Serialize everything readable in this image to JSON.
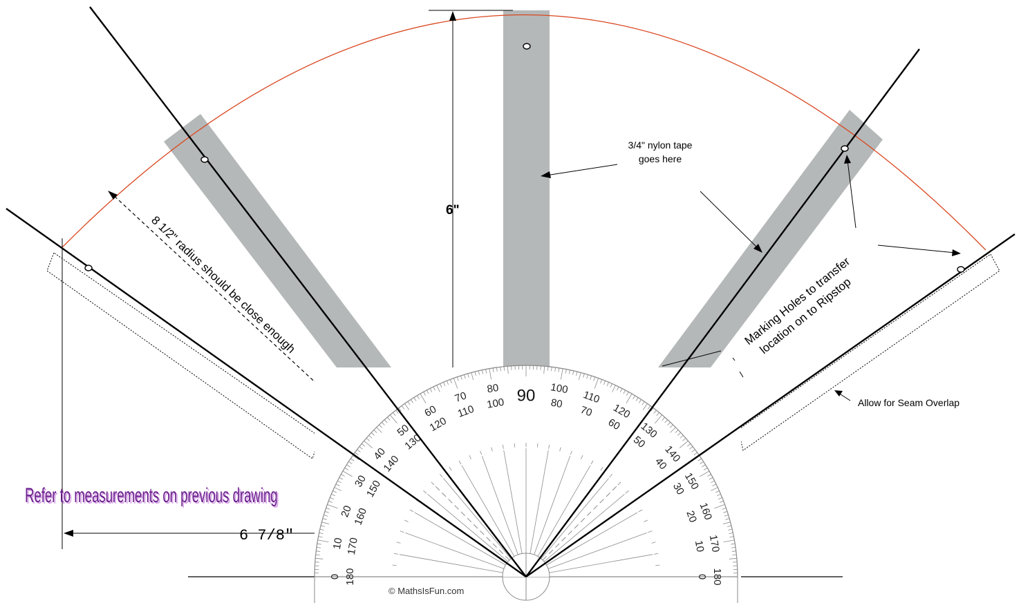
{
  "labels": {
    "tape_note_line1": "3/4\" nylon tape",
    "tape_note_line2": "goes here",
    "height_dim": "6\"",
    "radius_note": "8 1/2\" radius should be close enough",
    "marking_line1": "Marking Holes to transfer",
    "marking_line2": "location on to Ripstop",
    "seam_note": "Allow for Seam Overlap",
    "refer_note": "Refer to measurements on previous drawing",
    "width_dim": "6 7/8\""
  },
  "protractor": {
    "copyright": "© MathsIsFun.com",
    "center_label": "90",
    "outer_labels": [
      "0",
      "10",
      "20",
      "30",
      "40",
      "50",
      "60",
      "70",
      "80",
      "100",
      "110",
      "120",
      "130",
      "140",
      "150",
      "160",
      "170",
      "180"
    ],
    "inner_labels": [
      "180",
      "170",
      "160",
      "150",
      "140",
      "130",
      "120",
      "110",
      "100",
      "80",
      "70",
      "60",
      "50",
      "40",
      "30",
      "20",
      "10",
      "0"
    ]
  },
  "colors": {
    "arc": "#d9451e",
    "tape": "#b5b8b8",
    "ink": "#000000",
    "refer_text": "#6a1f8c",
    "refer_shadow": "#d7a7e6",
    "protractor_line": "#8a8a8a"
  }
}
